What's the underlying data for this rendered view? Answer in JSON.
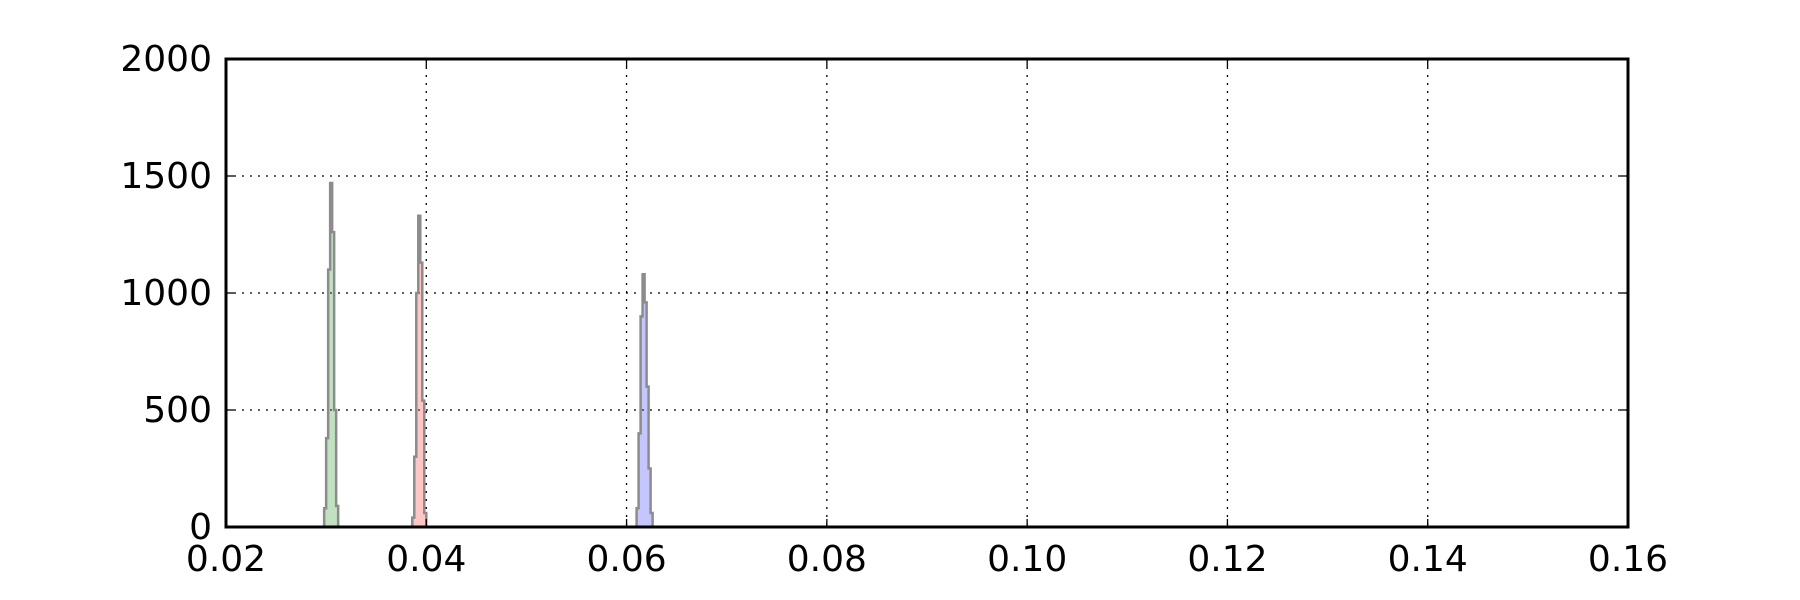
{
  "chart_data": {
    "type": "histogram",
    "title": "",
    "xlabel": "",
    "ylabel": "",
    "xlim": [
      0.02,
      0.16
    ],
    "ylim": [
      0,
      2000
    ],
    "xticks": [
      "0.02",
      "0.04",
      "0.06",
      "0.08",
      "0.10",
      "0.12",
      "0.14",
      "0.16"
    ],
    "xtick_values": [
      0.02,
      0.04,
      0.06,
      0.08,
      0.1,
      0.12,
      0.14,
      0.16
    ],
    "yticks": [
      "0",
      "500",
      "1000",
      "1500",
      "2000"
    ],
    "ytick_values": [
      0,
      500,
      1000,
      1500,
      2000
    ],
    "grid": true,
    "legend": "none",
    "series": [
      {
        "color": "#3fa33f",
        "edge_color": "#8c8c8c",
        "bins": [
          {
            "x0": 0.0298,
            "x1": 0.03,
            "count": 80
          },
          {
            "x0": 0.03,
            "x1": 0.0302,
            "count": 380
          },
          {
            "x0": 0.0302,
            "x1": 0.0304,
            "count": 1100
          },
          {
            "x0": 0.0304,
            "x1": 0.0306,
            "count": 1470
          },
          {
            "x0": 0.0306,
            "x1": 0.0308,
            "count": 1260
          },
          {
            "x0": 0.0308,
            "x1": 0.031,
            "count": 500
          },
          {
            "x0": 0.031,
            "x1": 0.0312,
            "count": 90
          }
        ]
      },
      {
        "color": "#ff4d4d",
        "edge_color": "#8c8c8c",
        "bins": [
          {
            "x0": 0.0386,
            "x1": 0.0388,
            "count": 40
          },
          {
            "x0": 0.0388,
            "x1": 0.039,
            "count": 300
          },
          {
            "x0": 0.039,
            "x1": 0.0392,
            "count": 1000
          },
          {
            "x0": 0.0392,
            "x1": 0.0394,
            "count": 1330
          },
          {
            "x0": 0.0394,
            "x1": 0.0396,
            "count": 1130
          },
          {
            "x0": 0.0396,
            "x1": 0.0398,
            "count": 540
          },
          {
            "x0": 0.0398,
            "x1": 0.04,
            "count": 60
          }
        ]
      },
      {
        "color": "#4d4dff",
        "edge_color": "#8c8c8c",
        "bins": [
          {
            "x0": 0.061,
            "x1": 0.0612,
            "count": 80
          },
          {
            "x0": 0.0612,
            "x1": 0.0614,
            "count": 400
          },
          {
            "x0": 0.0614,
            "x1": 0.0616,
            "count": 900
          },
          {
            "x0": 0.0616,
            "x1": 0.0618,
            "count": 1080
          },
          {
            "x0": 0.0618,
            "x1": 0.062,
            "count": 960
          },
          {
            "x0": 0.062,
            "x1": 0.0622,
            "count": 600
          },
          {
            "x0": 0.0622,
            "x1": 0.0624,
            "count": 250
          },
          {
            "x0": 0.0624,
            "x1": 0.0626,
            "count": 60
          }
        ]
      }
    ]
  }
}
